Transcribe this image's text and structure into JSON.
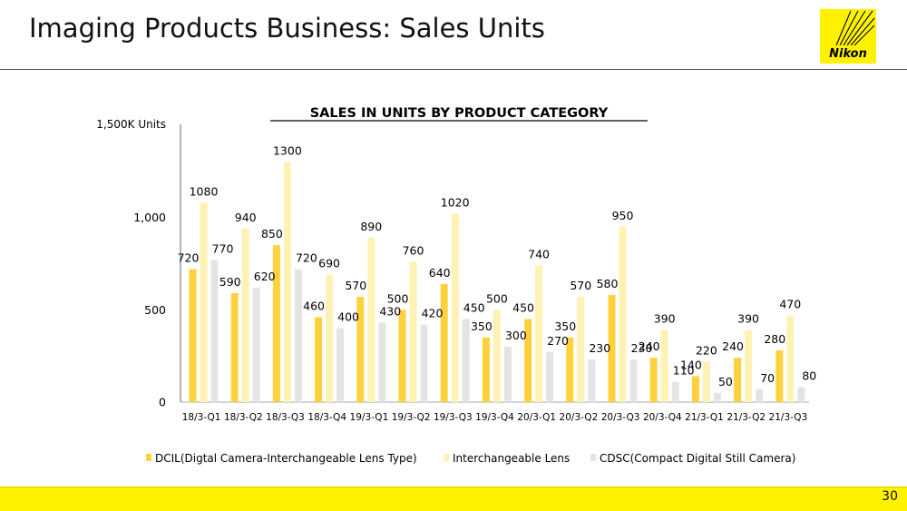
{
  "header": {
    "title": "Imaging Products Business: Sales Units",
    "logo_text": "Nikon"
  },
  "footer": {
    "page_number": "30"
  },
  "colors": {
    "dcil": "#ffd23c",
    "lens": "#fff2b2",
    "cdsc": "#e4e4e4",
    "brand_yellow": "#fff200"
  },
  "chart_data": {
    "type": "bar",
    "title": "SALES IN UNITS BY PRODUCT CATEGORY",
    "ylabel": "1,500K Units",
    "ylim": [
      0,
      1500
    ],
    "y_ticks": [
      {
        "value": 0,
        "label": "0"
      },
      {
        "value": 500,
        "label": "500"
      },
      {
        "value": 1000,
        "label": "1,000"
      }
    ],
    "categories": [
      "18/3-Q1",
      "18/3-Q2",
      "18/3-Q3",
      "18/3-Q4",
      "19/3-Q1",
      "19/3-Q2",
      "19/3-Q3",
      "19/3-Q4",
      "20/3-Q1",
      "20/3-Q2",
      "20/3-Q3",
      "20/3-Q4",
      "21/3-Q1",
      "21/3-Q2",
      "21/3-Q3"
    ],
    "series": [
      {
        "name": "DCIL(Digtal Camera-Interchangeable Lens Type)",
        "values": [
          720,
          590,
          850,
          460,
          570,
          500,
          640,
          350,
          450,
          350,
          580,
          240,
          140,
          240,
          280
        ]
      },
      {
        "name": "Interchangeable Lens",
        "values": [
          1080,
          940,
          1300,
          690,
          890,
          760,
          1020,
          500,
          740,
          570,
          950,
          390,
          220,
          390,
          470
        ]
      },
      {
        "name": "CDSC(Compact Digital Still Camera)",
        "values": [
          770,
          620,
          720,
          400,
          430,
          420,
          450,
          300,
          270,
          230,
          230,
          110,
          50,
          70,
          80
        ]
      }
    ],
    "grid": false,
    "legend_position": "bottom"
  }
}
